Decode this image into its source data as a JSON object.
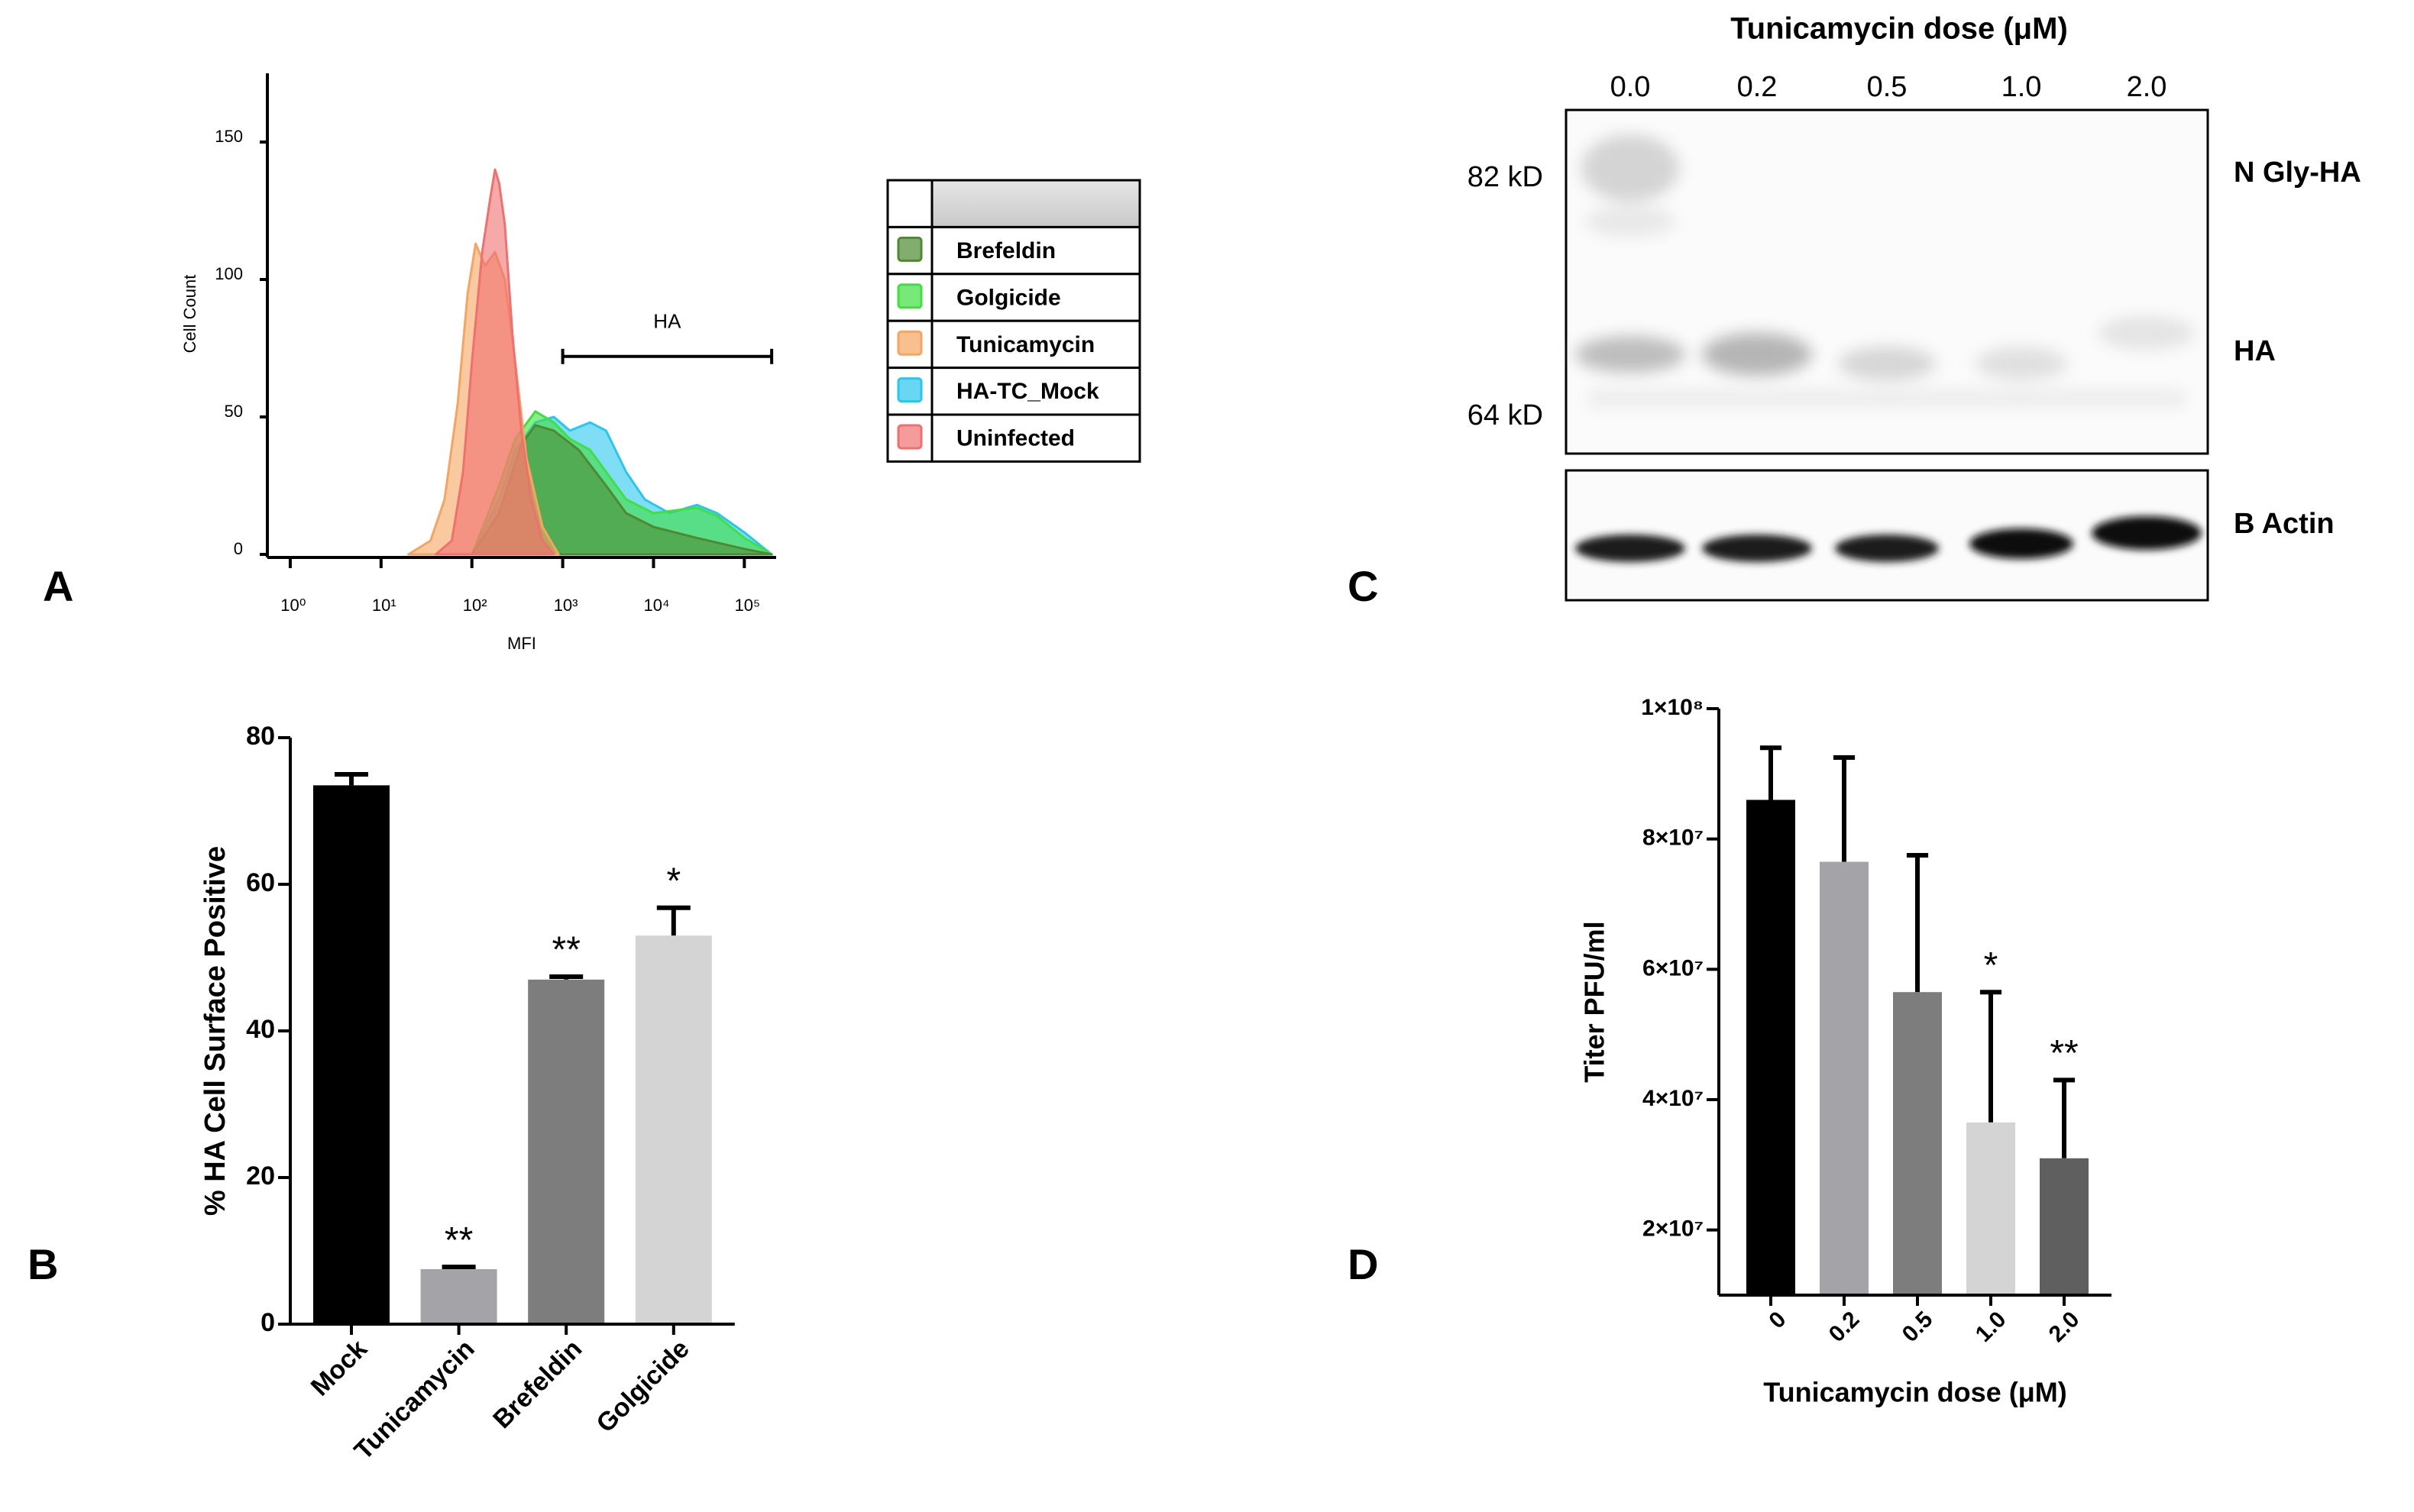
{
  "panel_labels": [
    "A",
    "B",
    "C",
    "D"
  ],
  "chart_data": [
    {
      "type": "area_histogram",
      "x_label": "MFI",
      "y_label": "Cell Count",
      "xscale": "log",
      "xlim": [
        0.56,
        224000
      ],
      "xticks": [
        {
          "value": 1,
          "label": "10⁰"
        },
        {
          "value": 10,
          "label": "10¹"
        },
        {
          "value": 100,
          "label": "10²"
        },
        {
          "value": 1000,
          "label": "10³"
        },
        {
          "value": 10000,
          "label": "10⁴"
        },
        {
          "value": 100000,
          "label": "10⁵"
        }
      ],
      "ylim": [
        0,
        175
      ],
      "yticks": [
        0,
        50,
        100,
        150
      ],
      "gate": {
        "label": "HA",
        "x": [
          1000,
          200000
        ],
        "y": 72
      },
      "series": [
        {
          "name": "Brefeldin",
          "color": "#4f8a32",
          "x": [
            100,
            200,
            350,
            500,
            800,
            1500,
            3000,
            5000,
            10000,
            30000,
            100000,
            200000
          ],
          "values": [
            0,
            15,
            40,
            47,
            45,
            38,
            25,
            15,
            10,
            6,
            2,
            0
          ]
        },
        {
          "name": "Golgicide",
          "color": "#3fe03f",
          "x": [
            100,
            200,
            300,
            500,
            800,
            1200,
            2000,
            3000,
            5000,
            10000,
            30000,
            50000,
            100000,
            200000
          ],
          "values": [
            0,
            25,
            42,
            52,
            48,
            42,
            38,
            30,
            20,
            15,
            17,
            14,
            6,
            0
          ]
        },
        {
          "name": "Tunicamycin",
          "color": "#f5a560",
          "x": [
            20,
            35,
            50,
            70,
            90,
            110,
            140,
            180,
            230,
            300,
            400,
            600,
            900
          ],
          "values": [
            0,
            5,
            20,
            55,
            95,
            113,
            105,
            110,
            100,
            70,
            35,
            10,
            0
          ]
        },
        {
          "name": "HA-TC_Mock",
          "color": "#29c6ee",
          "x": [
            100,
            200,
            300,
            500,
            800,
            1200,
            2000,
            3000,
            5000,
            8000,
            15000,
            30000,
            50000,
            100000,
            200000
          ],
          "values": [
            0,
            20,
            38,
            48,
            50,
            45,
            48,
            45,
            30,
            20,
            15,
            18,
            15,
            8,
            0
          ]
        },
        {
          "name": "Uninfected",
          "color": "#f07070",
          "x": [
            40,
            60,
            80,
            100,
            130,
            160,
            180,
            200,
            230,
            280,
            350,
            450,
            600,
            800
          ],
          "values": [
            0,
            5,
            30,
            70,
            110,
            130,
            140,
            135,
            120,
            80,
            45,
            20,
            5,
            0
          ]
        }
      ]
    },
    {
      "type": "bar",
      "y_label": "% HA Cell Surface Positive",
      "categories": [
        "Mock",
        "Tunicamycin",
        "Brefeldin",
        "Golgicide"
      ],
      "values": [
        73.5,
        7.5,
        47,
        53
      ],
      "errors": [
        1.5,
        0.3,
        0.4,
        3.8
      ],
      "significance": [
        null,
        "**",
        "**",
        "*"
      ],
      "colors": [
        "#000000",
        "#a3a3a8",
        "#7d7d7d",
        "#d4d4d4"
      ],
      "ylim": [
        0,
        80
      ],
      "yticks": [
        0,
        20,
        40,
        60,
        80
      ]
    },
    {
      "type": "bar",
      "y_label": "Titer PFU/ml",
      "x_label": "Tunicamycin dose (μM)",
      "categories": [
        "0",
        "0.2",
        "0.5",
        "1.0",
        "2.0"
      ],
      "values": [
        86000000,
        76500000,
        56500000,
        36500000,
        31000000
      ],
      "errors": [
        8000000,
        16000000,
        21000000,
        20000000,
        12000000
      ],
      "significance": [
        null,
        null,
        null,
        "*",
        "**"
      ],
      "colors": [
        "#000000",
        "#a3a3a8",
        "#7d7d7d",
        "#d4d4d4",
        "#5f5f5f"
      ],
      "ylim": [
        10000000,
        100000000
      ],
      "yticks": [
        {
          "value": 20000000,
          "label": "2×10⁷"
        },
        {
          "value": 40000000,
          "label": "4×10⁷"
        },
        {
          "value": 60000000,
          "label": "6×10⁷"
        },
        {
          "value": 80000000,
          "label": "8×10⁷"
        },
        {
          "value": 100000000,
          "label": "1×10⁸"
        }
      ]
    }
  ],
  "blot": {
    "title": "Tunicamycin dose (μM)",
    "lanes": [
      "0.0",
      "0.2",
      "0.5",
      "1.0",
      "2.0"
    ],
    "markers": [
      "82 kD",
      "64 kD"
    ],
    "bands": [
      "N Gly-HA",
      "HA",
      "B Actin"
    ]
  }
}
